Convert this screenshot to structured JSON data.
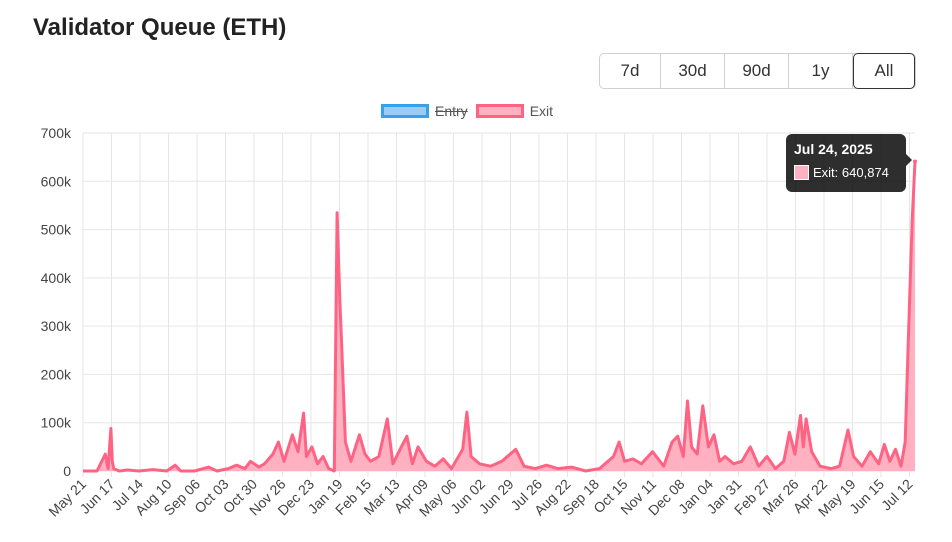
{
  "page_title": "Validator Queue (ETH)",
  "range_buttons": [
    {
      "label": "7d",
      "active": false
    },
    {
      "label": "30d",
      "active": false
    },
    {
      "label": "90d",
      "active": false
    },
    {
      "label": "1y",
      "active": false
    },
    {
      "label": "All",
      "active": true
    }
  ],
  "tooltip": {
    "title": "Jul 24, 2025",
    "series": "Exit",
    "value": "640,874"
  },
  "chart_data": {
    "type": "area",
    "legend": [
      {
        "name": "Entry",
        "hidden": true,
        "color": "#36a2eb",
        "fill": "#9dccf2"
      },
      {
        "name": "Exit",
        "hidden": false,
        "color": "#ff6384",
        "fill": "#ffb0c1"
      }
    ],
    "legend_position": "top-center",
    "ylim": [
      0,
      700000
    ],
    "y_ticks": [
      0,
      100000,
      200000,
      300000,
      400000,
      500000,
      600000,
      700000
    ],
    "y_tick_labels": [
      "0",
      "100k",
      "200k",
      "300k",
      "400k",
      "500k",
      "600k",
      "700k"
    ],
    "x_tick_labels": [
      "May 21",
      "Jun 17",
      "Jul 14",
      "Aug 10",
      "Sep 06",
      "Oct 03",
      "Oct 30",
      "Nov 26",
      "Dec 23",
      "Jan 19",
      "Feb 15",
      "Mar 13",
      "Apr 09",
      "May 06",
      "Jun 02",
      "Jun 29",
      "Jul 26",
      "Aug 22",
      "Sep 18",
      "Oct 15",
      "Nov 11",
      "Dec 08",
      "Jan 04",
      "Jan 31",
      "Feb 27",
      "Mar 26",
      "Apr 22",
      "May 19",
      "Jun 15",
      "Jul 12"
    ],
    "grid": true,
    "series": [
      {
        "name": "Exit",
        "points": [
          [
            0,
            0
          ],
          [
            0.5,
            0
          ],
          [
            0.8,
            35000
          ],
          [
            0.9,
            5000
          ],
          [
            1,
            88000
          ],
          [
            1.05,
            20000
          ],
          [
            1.1,
            5000
          ],
          [
            1.3,
            0
          ],
          [
            1.6,
            2000
          ],
          [
            2,
            0
          ],
          [
            2.5,
            3000
          ],
          [
            3,
            0
          ],
          [
            3.3,
            12000
          ],
          [
            3.5,
            0
          ],
          [
            4,
            0
          ],
          [
            4.5,
            8000
          ],
          [
            4.8,
            0
          ],
          [
            5.2,
            5000
          ],
          [
            5.5,
            12000
          ],
          [
            5.8,
            5000
          ],
          [
            6,
            20000
          ],
          [
            6.3,
            8000
          ],
          [
            6.5,
            15000
          ],
          [
            6.8,
            35000
          ],
          [
            7,
            60000
          ],
          [
            7.2,
            20000
          ],
          [
            7.5,
            75000
          ],
          [
            7.7,
            40000
          ],
          [
            7.9,
            120000
          ],
          [
            8.0,
            30000
          ],
          [
            8.2,
            50000
          ],
          [
            8.4,
            15000
          ],
          [
            8.6,
            30000
          ],
          [
            8.8,
            5000
          ],
          [
            9.0,
            0
          ],
          [
            9.1,
            535000
          ],
          [
            9.2,
            350000
          ],
          [
            9.25,
            280000
          ],
          [
            9.4,
            60000
          ],
          [
            9.6,
            20000
          ],
          [
            9.9,
            75000
          ],
          [
            10.1,
            35000
          ],
          [
            10.3,
            20000
          ],
          [
            10.6,
            30000
          ],
          [
            10.9,
            108000
          ],
          [
            11.1,
            15000
          ],
          [
            11.4,
            50000
          ],
          [
            11.6,
            72000
          ],
          [
            11.8,
            15000
          ],
          [
            12.0,
            50000
          ],
          [
            12.3,
            20000
          ],
          [
            12.6,
            10000
          ],
          [
            12.9,
            25000
          ],
          [
            13.2,
            5000
          ],
          [
            13.6,
            45000
          ],
          [
            13.75,
            122000
          ],
          [
            13.9,
            30000
          ],
          [
            14.2,
            15000
          ],
          [
            14.6,
            10000
          ],
          [
            15.0,
            20000
          ],
          [
            15.5,
            45000
          ],
          [
            15.8,
            10000
          ],
          [
            16.2,
            5000
          ],
          [
            16.6,
            12000
          ],
          [
            17,
            5000
          ],
          [
            17.5,
            8000
          ],
          [
            18,
            0
          ],
          [
            18.5,
            5000
          ],
          [
            19.0,
            30000
          ],
          [
            19.2,
            60000
          ],
          [
            19.4,
            20000
          ],
          [
            19.7,
            25000
          ],
          [
            20.0,
            15000
          ],
          [
            20.4,
            40000
          ],
          [
            20.8,
            10000
          ],
          [
            21.1,
            60000
          ],
          [
            21.3,
            72000
          ],
          [
            21.5,
            30000
          ],
          [
            21.65,
            145000
          ],
          [
            21.8,
            50000
          ],
          [
            22.0,
            35000
          ],
          [
            22.2,
            135000
          ],
          [
            22.4,
            50000
          ],
          [
            22.6,
            75000
          ],
          [
            22.8,
            20000
          ],
          [
            23.0,
            30000
          ],
          [
            23.3,
            15000
          ],
          [
            23.6,
            20000
          ],
          [
            23.9,
            50000
          ],
          [
            24.2,
            10000
          ],
          [
            24.5,
            30000
          ],
          [
            24.8,
            5000
          ],
          [
            25.1,
            20000
          ],
          [
            25.3,
            80000
          ],
          [
            25.5,
            35000
          ],
          [
            25.7,
            115000
          ],
          [
            25.8,
            50000
          ],
          [
            25.9,
            108000
          ],
          [
            26.1,
            40000
          ],
          [
            26.4,
            10000
          ],
          [
            26.8,
            5000
          ],
          [
            27.1,
            10000
          ],
          [
            27.4,
            85000
          ],
          [
            27.6,
            30000
          ],
          [
            27.9,
            10000
          ],
          [
            28.2,
            40000
          ],
          [
            28.5,
            15000
          ],
          [
            28.7,
            55000
          ],
          [
            28.9,
            20000
          ],
          [
            29.1,
            45000
          ],
          [
            29.3,
            10000
          ],
          [
            29.45,
            60000
          ],
          [
            29.55,
            250000
          ],
          [
            29.7,
            520000
          ],
          [
            29.8,
            640874
          ]
        ]
      }
    ],
    "x_domain": [
      0,
      29.8
    ]
  }
}
